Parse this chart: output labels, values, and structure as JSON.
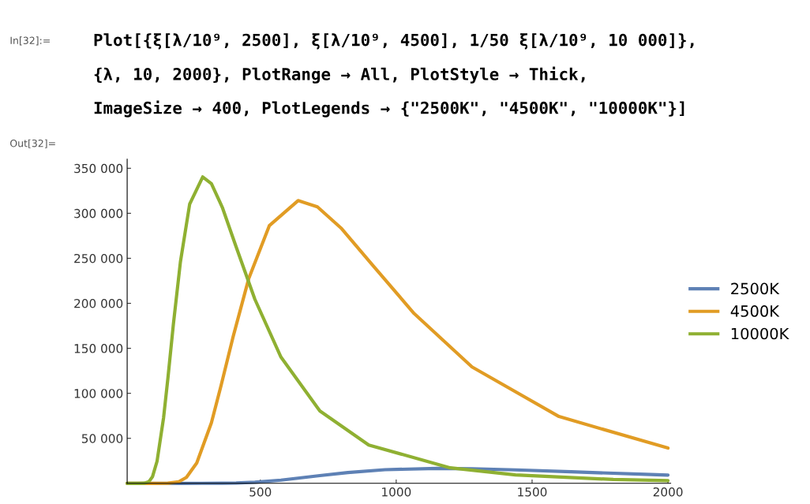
{
  "chart_data": {
    "type": "line",
    "annotations": [
      "In[32]:=",
      "Plot[{ξ[λ/10⁹, 2500], ξ[λ/10⁹, 4500], 1/50 ξ[λ/10⁹, 10 000]},",
      "{λ, 10, 2000}, PlotRange → All, PlotStyle → Thick,",
      "ImageSize → 400, PlotLegends → {\"2500K\", \"4500K\", \"10000K\"}]",
      "Out[32]="
    ],
    "xlim": [
      10,
      2010
    ],
    "ylim": [
      0,
      360000
    ],
    "xticks": [
      500,
      1000,
      1500,
      2000
    ],
    "yticks": [
      {
        "value": 50000,
        "label": "50 000"
      },
      {
        "value": 100000,
        "label": "100 000"
      },
      {
        "value": 150000,
        "label": "150 000"
      },
      {
        "value": 200000,
        "label": "200 000"
      },
      {
        "value": 250000,
        "label": "250 000"
      },
      {
        "value": 300000,
        "label": "300 000"
      },
      {
        "value": 350000,
        "label": "350 000"
      }
    ],
    "legend": "right",
    "grid": false,
    "series": [
      {
        "name": "2500K",
        "color": "#5e81b5",
        "x": [
          10,
          200,
          360,
          411,
          480,
          576,
          719,
          822,
          959,
          1151,
          1279,
          1439,
          1644,
          1918,
          2000
        ],
        "values": [
          0,
          0,
          100,
          350,
          1200,
          3560,
          8620,
          12020,
          15150,
          16620,
          16250,
          14970,
          12820,
          9980,
          9200
        ]
      },
      {
        "name": "4500K",
        "color": "#e19c24",
        "x": [
          10,
          100,
          160,
          200,
          228,
          266,
          320,
          355,
          400,
          457,
          533,
          639,
          710,
          799,
          913,
          1066,
          1279,
          1599,
          2000
        ],
        "values": [
          0,
          0,
          100,
          1750,
          6620,
          22650,
          67260,
          108000,
          163000,
          227100,
          286200,
          314100,
          307100,
          283000,
          242400,
          188600,
          129300,
          74200,
          39200
        ]
      },
      {
        "name": "10000K",
        "color": "#8fb032",
        "x": [
          10,
          50,
          72,
          90,
          103,
          120,
          144,
          160,
          180,
          206,
          240,
          288,
          320,
          360,
          411,
          480,
          576,
          719,
          899,
          1199,
          1439,
          1799,
          2000
        ],
        "values": [
          0,
          0,
          100,
          1900,
          7180,
          24550,
          72900,
          117050,
          176600,
          246150,
          310200,
          340400,
          332900,
          306700,
          262700,
          204400,
          140200,
          80400,
          42550,
          17210,
          9350,
          4290,
          2950
        ]
      }
    ]
  }
}
